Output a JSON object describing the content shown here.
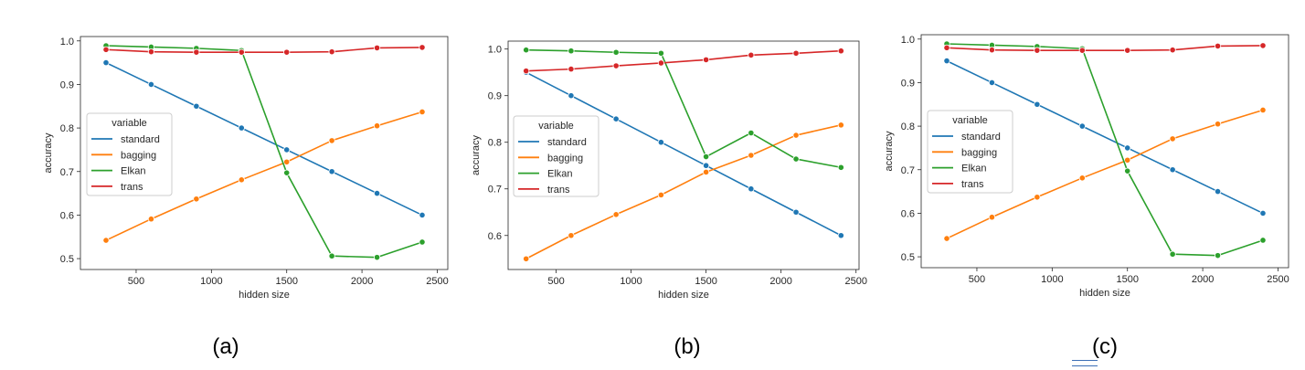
{
  "panels": [
    {
      "caption": "(a)"
    },
    {
      "caption": "(b)"
    },
    {
      "caption": "(c)"
    }
  ],
  "colors": {
    "standard": "#1f77b4",
    "bagging": "#ff7f0e",
    "Elkan": "#2ca02c",
    "trans": "#d62728",
    "axis": "#262626",
    "legend_border": "#cccccc"
  },
  "chart_data": [
    {
      "type": "line",
      "xlabel": "hidden size",
      "ylabel": "accuracy",
      "xlim": [
        130,
        2570
      ],
      "ylim": [
        0.475,
        1.01
      ],
      "xticks": [
        500,
        1000,
        1500,
        2000,
        2500
      ],
      "yticks": [
        0.5,
        0.6,
        0.7,
        0.8,
        0.9,
        1.0
      ],
      "ytick_labels": [
        "0.5",
        "0.6",
        "0.7",
        "0.8",
        "0.9",
        "1.0"
      ],
      "x": [
        300,
        600,
        900,
        1200,
        1500,
        1800,
        2100,
        2400
      ],
      "legend": {
        "title": "variable",
        "position": "center-left"
      },
      "grid": false,
      "series": [
        {
          "name": "standard",
          "values": [
            0.95,
            0.9,
            0.85,
            0.8,
            0.75,
            0.7,
            0.65,
            0.6
          ]
        },
        {
          "name": "bagging",
          "values": [
            0.542,
            0.591,
            0.637,
            0.681,
            0.722,
            0.771,
            0.805,
            0.837
          ]
        },
        {
          "name": "Elkan",
          "values": [
            0.989,
            0.986,
            0.983,
            0.978,
            0.697,
            0.506,
            0.503,
            0.538
          ]
        },
        {
          "name": "trans",
          "values": [
            0.98,
            0.975,
            0.974,
            0.974,
            0.974,
            0.975,
            0.984,
            0.985
          ]
        }
      ]
    },
    {
      "type": "line",
      "xlabel": "hidden size",
      "ylabel": "accuracy",
      "xlim": [
        180,
        2520
      ],
      "ylim": [
        0.527,
        1.017
      ],
      "xticks": [
        500,
        1000,
        1500,
        2000,
        2500
      ],
      "yticks": [
        0.6,
        0.7,
        0.8,
        0.9,
        1.0
      ],
      "ytick_labels": [
        "0.6",
        "0.7",
        "0.8",
        "0.9",
        "1.0"
      ],
      "x": [
        300,
        600,
        900,
        1200,
        1500,
        1800,
        2100,
        2400
      ],
      "legend": {
        "title": "variable",
        "position": "center-left"
      },
      "grid": false,
      "series": [
        {
          "name": "standard",
          "values": [
            0.95,
            0.9,
            0.85,
            0.8,
            0.75,
            0.7,
            0.65,
            0.6
          ]
        },
        {
          "name": "bagging",
          "values": [
            0.55,
            0.6,
            0.645,
            0.687,
            0.736,
            0.772,
            0.815,
            0.837
          ]
        },
        {
          "name": "Elkan",
          "values": [
            0.998,
            0.996,
            0.993,
            0.991,
            0.769,
            0.82,
            0.764,
            0.746
          ]
        },
        {
          "name": "trans",
          "values": [
            0.953,
            0.957,
            0.964,
            0.97,
            0.977,
            0.987,
            0.991,
            0.996
          ]
        }
      ]
    },
    {
      "type": "line",
      "xlabel": "hidden size",
      "ylabel": "accuracy",
      "xlim": [
        130,
        2570
      ],
      "ylim": [
        0.475,
        1.01
      ],
      "xticks": [
        500,
        1000,
        1500,
        2000,
        2500
      ],
      "yticks": [
        0.5,
        0.6,
        0.7,
        0.8,
        0.9,
        1.0
      ],
      "ytick_labels": [
        "0.5",
        "0.6",
        "0.7",
        "0.8",
        "0.9",
        "1.0"
      ],
      "x": [
        300,
        600,
        900,
        1200,
        1500,
        1800,
        2100,
        2400
      ],
      "legend": {
        "title": "variable",
        "position": "center-left"
      },
      "grid": false,
      "series": [
        {
          "name": "standard",
          "values": [
            0.95,
            0.9,
            0.85,
            0.8,
            0.75,
            0.7,
            0.65,
            0.6
          ]
        },
        {
          "name": "bagging",
          "values": [
            0.542,
            0.591,
            0.637,
            0.681,
            0.722,
            0.771,
            0.805,
            0.837
          ]
        },
        {
          "name": "Elkan",
          "values": [
            0.989,
            0.986,
            0.983,
            0.978,
            0.697,
            0.506,
            0.503,
            0.538
          ]
        },
        {
          "name": "trans",
          "values": [
            0.98,
            0.975,
            0.974,
            0.974,
            0.974,
            0.975,
            0.984,
            0.985
          ]
        }
      ]
    }
  ]
}
